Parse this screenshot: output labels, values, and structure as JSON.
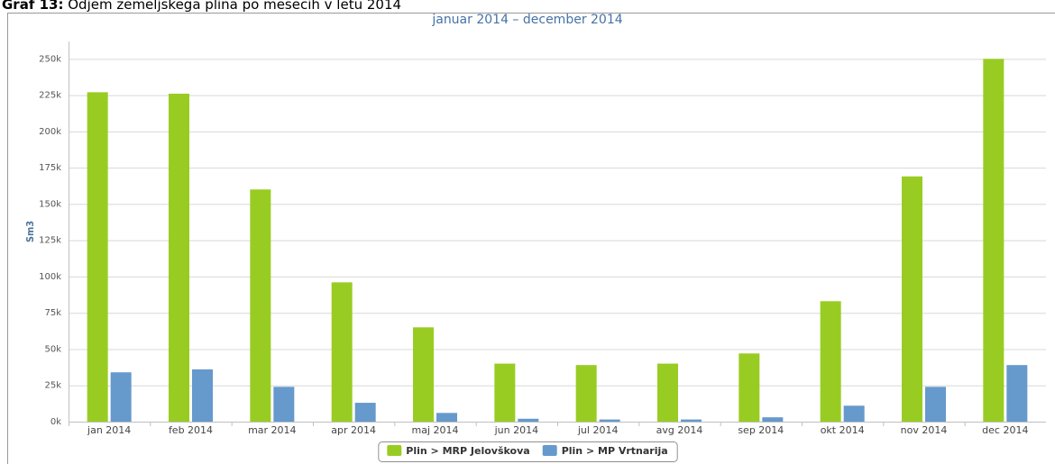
{
  "chart_data": {
    "type": "bar",
    "title_label": "Graf 13:",
    "title": "Odjem zemeljskega plina po mesecih v letu 2014",
    "subtitle": "januar 2014 – december 2014",
    "y_label": "Sm3",
    "categories": [
      "jan 2014",
      "feb 2014",
      "mar 2014",
      "apr 2014",
      "maj 2014",
      "jun 2014",
      "jul 2014",
      "avg 2014",
      "sep 2014",
      "okt 2014",
      "nov 2014",
      "dec 2014"
    ],
    "series": [
      {
        "name": "Plin > MRP Jelovškova",
        "color": "#99cc22",
        "values": [
          227000,
          226000,
          160000,
          96000,
          65000,
          40000,
          39000,
          40000,
          47000,
          83000,
          169000,
          250000
        ]
      },
      {
        "name": "Plin > MP Vrtnarija",
        "color": "#6699cc",
        "values": [
          34000,
          36000,
          24000,
          13000,
          6000,
          2000,
          1500,
          1500,
          3000,
          11000,
          24000,
          39000
        ]
      }
    ],
    "ylim": [
      0,
      262000
    ],
    "yticks": [
      {
        "value": 0,
        "label": "0k"
      },
      {
        "value": 25000,
        "label": "25k"
      },
      {
        "value": 50000,
        "label": "50k"
      },
      {
        "value": 75000,
        "label": "75k"
      },
      {
        "value": 100000,
        "label": "100k"
      },
      {
        "value": 125000,
        "label": "125k"
      },
      {
        "value": 150000,
        "label": "150k"
      },
      {
        "value": 175000,
        "label": "175k"
      },
      {
        "value": 200000,
        "label": "200k"
      },
      {
        "value": 225000,
        "label": "225k"
      },
      {
        "value": 250000,
        "label": "250k"
      }
    ],
    "grid": true,
    "legend": "bottom"
  }
}
